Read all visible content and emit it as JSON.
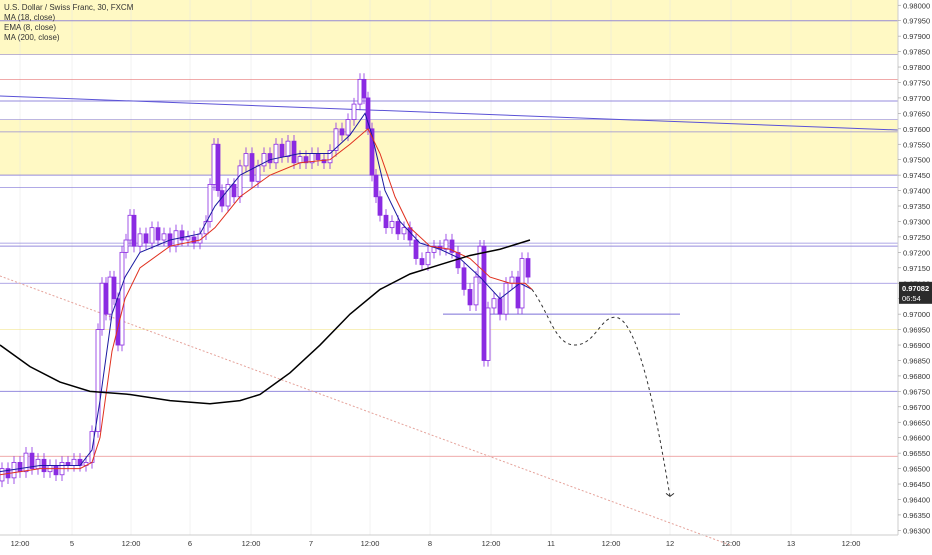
{
  "chart_data": {
    "type": "candlestick",
    "title": "U.S. Dollar / Swiss Franc, 30, FXCM",
    "indicators": [
      "MA (18, close)",
      "EMA (8, close)",
      "MA (200, close)"
    ],
    "y_ticks": [
      "0.98000",
      "0.97950",
      "0.97900",
      "0.97850",
      "0.97800",
      "0.97750",
      "0.97700",
      "0.97650",
      "0.97600",
      "0.97550",
      "0.97500",
      "0.97450",
      "0.97400",
      "0.97350",
      "0.97300",
      "0.97250",
      "0.97200",
      "0.97150",
      "0.97100",
      "0.97050",
      "0.97000",
      "0.96950",
      "0.96900",
      "0.96850",
      "0.96800",
      "0.96750",
      "0.96700",
      "0.96650",
      "0.96600",
      "0.96550",
      "0.96500",
      "0.96450",
      "0.96400",
      "0.96350",
      "0.96300"
    ],
    "ylim": [
      0.963,
      0.98
    ],
    "x_ticks": [
      "12:00",
      "5",
      "12:00",
      "6",
      "12:00",
      "7",
      "12:00",
      "8",
      "12:00",
      "11",
      "12:00",
      "12",
      "12:00",
      "13",
      "12:00"
    ],
    "last_price": "0.97082",
    "countdown": "06:54",
    "zones": [
      [
        0.9795,
        0.9784
      ],
      [
        0.9763,
        0.9745
      ]
    ],
    "horizontal_levels": [
      0.9795,
      0.9784,
      0.9776,
      0.9769,
      0.9763,
      0.9759,
      0.9745,
      0.9741,
      0.9723,
      0.9722,
      0.971,
      0.9695,
      0.9675,
      0.9654
    ],
    "level_y_target": 0.97,
    "projection_target": 0.9641,
    "colors": {
      "candle": "#8a2be2",
      "ma18": "#1a1aa0",
      "ema8": "#e0301e",
      "ma200": "#000000",
      "zone": "#fff9c4",
      "level": "#7b6fd6",
      "red_level": "#e57373",
      "grid": "#e6e6e6",
      "price_tag": "#2b2b2b"
    }
  }
}
